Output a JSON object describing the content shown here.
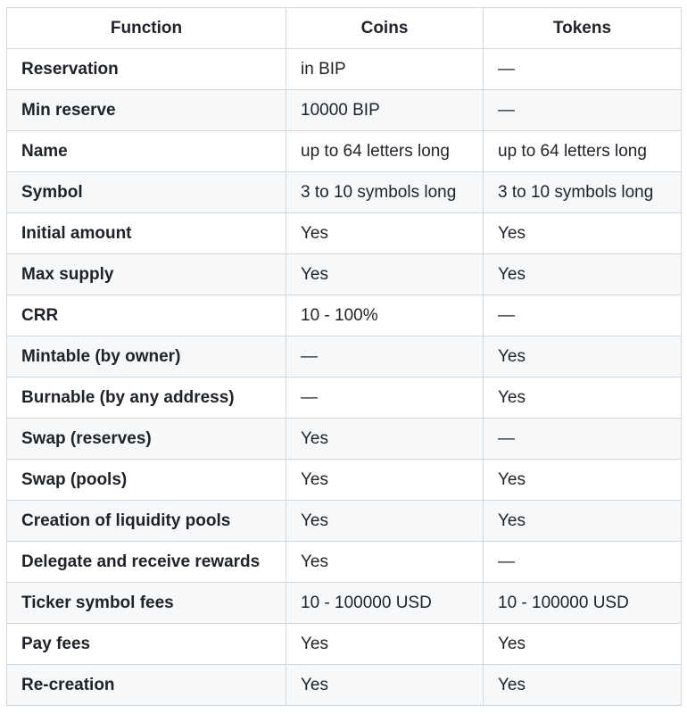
{
  "table": {
    "headers": [
      "Function",
      "Coins",
      "Tokens"
    ],
    "rows": [
      [
        "Reservation",
        "in BIP",
        "—"
      ],
      [
        "Min reserve",
        "10000 BIP",
        "—"
      ],
      [
        "Name",
        "up to 64 letters long",
        "up to 64 letters long"
      ],
      [
        "Symbol",
        "3 to 10 symbols long",
        "3 to 10 symbols long"
      ],
      [
        "Initial amount",
        "Yes",
        "Yes"
      ],
      [
        "Max supply",
        "Yes",
        "Yes"
      ],
      [
        "CRR",
        "10 - 100%",
        "—"
      ],
      [
        "Mintable (by owner)",
        "—",
        "Yes"
      ],
      [
        "Burnable (by any address)",
        "—",
        "Yes"
      ],
      [
        "Swap (reserves)",
        "Yes",
        "—"
      ],
      [
        "Swap (pools)",
        "Yes",
        "Yes"
      ],
      [
        "Creation of liquidity pools",
        "Yes",
        "Yes"
      ],
      [
        "Delegate and receive rewards",
        "Yes",
        "—"
      ],
      [
        "Ticker symbol fees",
        "10 - 100000 USD",
        "10 - 100000 USD"
      ],
      [
        "Pay fees",
        "Yes",
        "Yes"
      ],
      [
        "Re-creation",
        "Yes",
        "Yes"
      ]
    ]
  }
}
